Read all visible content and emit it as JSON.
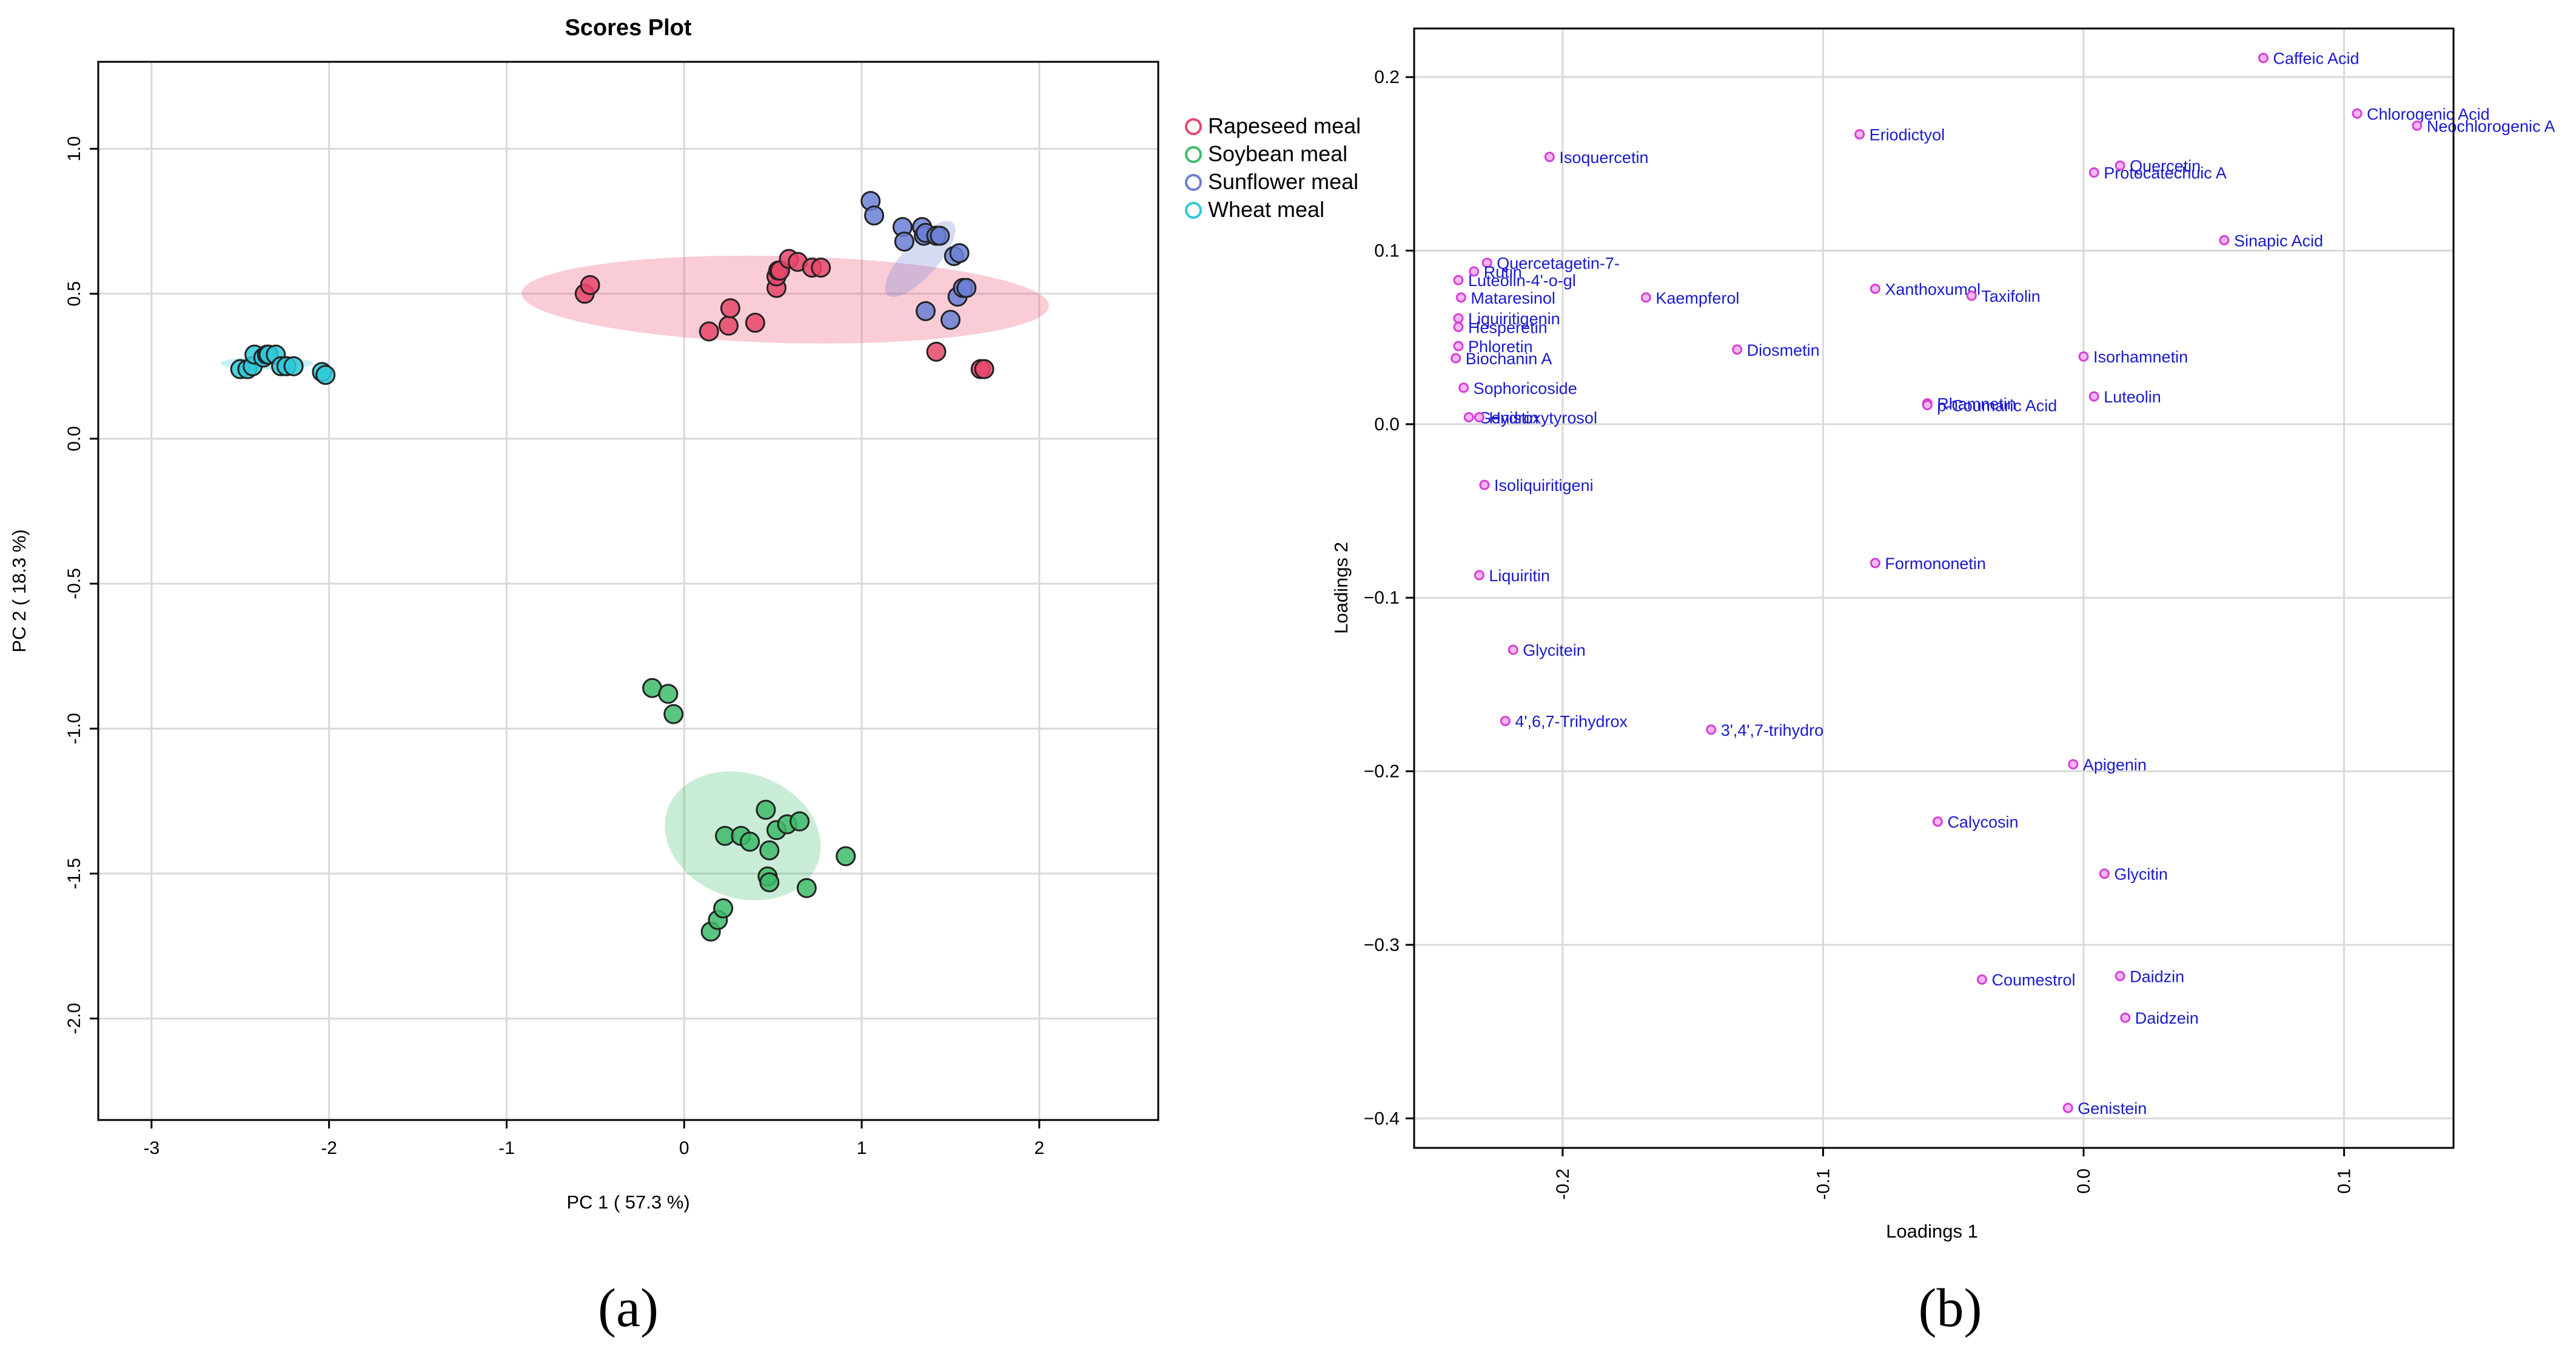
{
  "panels": {
    "a_label": "(a)",
    "b_label": "(b)"
  },
  "colors": {
    "rapeseed": "#e8476a",
    "soybean": "#3dbb6a",
    "sunflower": "#6b7fd6",
    "wheat": "#2fc9d8",
    "loading_point": "#d63fd6",
    "loading_text": "#1a1acc"
  },
  "chart_data": [
    {
      "type": "scatter",
      "title": "Scores Plot",
      "xlabel": "PC 1 ( 57.3 %)",
      "ylabel": "PC 2 ( 18.3 %)",
      "xlim": [
        -3.3,
        2.67
      ],
      "ylim": [
        -2.35,
        1.3
      ],
      "xticks": [
        -3,
        -2,
        -1,
        0,
        1,
        2
      ],
      "yticks": [
        -2.0,
        -1.5,
        -1.0,
        -0.5,
        0.0,
        0.5,
        1.0
      ],
      "ytick_labels": [
        "-2.0",
        "-1.5",
        "-1.0",
        "-0.5",
        "0.0",
        "0.5",
        "1.0"
      ],
      "grid": true,
      "legend_position": "top-right outside",
      "series": [
        {
          "name": "Rapeseed meal",
          "color_key": "rapeseed",
          "x": [
            -0.56,
            -0.53,
            0.14,
            0.25,
            0.26,
            0.4,
            0.52,
            0.52,
            0.53,
            0.54,
            0.59,
            0.64,
            0.72,
            0.77,
            1.42,
            1.67,
            1.69
          ],
          "y": [
            0.5,
            0.53,
            0.37,
            0.39,
            0.45,
            0.4,
            0.52,
            0.56,
            0.58,
            0.58,
            0.62,
            0.61,
            0.59,
            0.59,
            0.3,
            0.24,
            0.24
          ],
          "ellipse": {
            "cx": 0.57,
            "cy": 0.48,
            "rx": 2.97,
            "ry": 0.3,
            "angle_deg": -1.4
          }
        },
        {
          "name": "Soybean meal",
          "color_key": "soybean",
          "x": [
            -0.18,
            -0.09,
            -0.06,
            0.15,
            0.19,
            0.22,
            0.23,
            0.32,
            0.37,
            0.46,
            0.47,
            0.48,
            0.48,
            0.52,
            0.58,
            0.65,
            0.69,
            0.91
          ],
          "y": [
            -0.86,
            -0.88,
            -0.95,
            -1.7,
            -1.66,
            -1.62,
            -1.37,
            -1.37,
            -1.39,
            -1.28,
            -1.51,
            -1.42,
            -1.53,
            -1.35,
            -1.33,
            -1.32,
            -1.55,
            -1.44
          ],
          "ellipse": {
            "cx": 0.33,
            "cy": -1.37,
            "rx": 0.7,
            "ry": 0.55,
            "angle_deg": 70
          }
        },
        {
          "name": "Sunflower meal",
          "color_key": "sunflower",
          "x": [
            1.05,
            1.07,
            1.23,
            1.24,
            1.34,
            1.35,
            1.36,
            1.36,
            1.42,
            1.44,
            1.5,
            1.52,
            1.54,
            1.55,
            1.57,
            1.59
          ],
          "y": [
            0.82,
            0.77,
            0.73,
            0.68,
            0.73,
            0.7,
            0.71,
            0.44,
            0.7,
            0.7,
            0.41,
            0.63,
            0.49,
            0.64,
            0.52,
            0.52
          ],
          "ellipse": {
            "cx": 1.33,
            "cy": 0.62,
            "rx": 0.55,
            "ry": 0.12,
            "angle_deg": 48
          }
        },
        {
          "name": "Wheat meal",
          "color_key": "wheat",
          "x": [
            -2.5,
            -2.46,
            -2.43,
            -2.42,
            -2.37,
            -2.35,
            -2.34,
            -2.3,
            -2.27,
            -2.24,
            -2.2,
            -2.04,
            -2.02
          ],
          "y": [
            0.24,
            0.24,
            0.25,
            0.29,
            0.28,
            0.29,
            0.29,
            0.29,
            0.25,
            0.25,
            0.25,
            0.23,
            0.22
          ],
          "ellipse": {
            "cx": -2.35,
            "cy": 0.26,
            "rx": 0.52,
            "ry": 0.045,
            "angle_deg": 0
          }
        }
      ]
    },
    {
      "type": "scatter",
      "title": "",
      "xlabel": "Loadings 1",
      "ylabel": "Loadings 2",
      "xlim": [
        -0.257,
        0.142
      ],
      "ylim": [
        -0.417,
        0.228
      ],
      "xticks": [
        -0.2,
        -0.1,
        0.0,
        0.1
      ],
      "xtick_labels": [
        "-0.2",
        "-0.1",
        "0.0",
        "0.1"
      ],
      "yticks": [
        -0.4,
        -0.3,
        -0.2,
        -0.1,
        0.0,
        0.1,
        0.2
      ],
      "ytick_labels": [
        "−0.4",
        "−0.3",
        "−0.2",
        "−0.1",
        "0.0",
        "0.1",
        "0.2"
      ],
      "grid": true,
      "points": [
        {
          "label": "Caffeic Acid",
          "x": 0.069,
          "y": 0.211
        },
        {
          "label": "Chlorogenic Acid",
          "x": 0.105,
          "y": 0.179
        },
        {
          "label": "Neochlorogenic A",
          "x": 0.128,
          "y": 0.172
        },
        {
          "label": "Eriodictyol",
          "x": -0.086,
          "y": 0.167
        },
        {
          "label": "Isoquercetin",
          "x": -0.205,
          "y": 0.154
        },
        {
          "label": "Quercetin",
          "x": 0.014,
          "y": 0.149
        },
        {
          "label": "Protocatechuic A",
          "x": 0.004,
          "y": 0.145
        },
        {
          "label": "Sinapic Acid",
          "x": 0.054,
          "y": 0.106
        },
        {
          "label": "Quercetagetin-7-",
          "x": -0.229,
          "y": 0.093
        },
        {
          "label": "Rutin",
          "x": -0.234,
          "y": 0.088
        },
        {
          "label": "Luteolin-4'-o-gl",
          "x": -0.24,
          "y": 0.083
        },
        {
          "label": "Xanthoxumol",
          "x": -0.08,
          "y": 0.078
        },
        {
          "label": "Taxifolin",
          "x": -0.043,
          "y": 0.074
        },
        {
          "label": "Mataresinol",
          "x": -0.239,
          "y": 0.073
        },
        {
          "label": "Kaempferol",
          "x": -0.168,
          "y": 0.073
        },
        {
          "label": "Liquiritigenin",
          "x": -0.24,
          "y": 0.061
        },
        {
          "label": "Hesperetin",
          "x": -0.24,
          "y": 0.056
        },
        {
          "label": "Phloretin",
          "x": -0.24,
          "y": 0.045
        },
        {
          "label": "Diosmetin",
          "x": -0.133,
          "y": 0.043
        },
        {
          "label": "Isorhamnetin",
          "x": 0.0,
          "y": 0.039
        },
        {
          "label": "Biochanin A",
          "x": -0.241,
          "y": 0.038
        },
        {
          "label": "Sophoricoside",
          "x": -0.238,
          "y": 0.021
        },
        {
          "label": "Luteolin",
          "x": 0.004,
          "y": 0.016
        },
        {
          "label": "Rhamnetin",
          "x": -0.06,
          "y": 0.012
        },
        {
          "label": "p-Coumaric Acid",
          "x": -0.06,
          "y": 0.011
        },
        {
          "label": "Genistin",
          "x": -0.236,
          "y": 0.004
        },
        {
          "label": "Hydroxytyrosol",
          "x": -0.232,
          "y": 0.004
        },
        {
          "label": "Isoliquiritigeni",
          "x": -0.23,
          "y": -0.035
        },
        {
          "label": "Formononetin",
          "x": -0.08,
          "y": -0.08
        },
        {
          "label": "Liquiritin",
          "x": -0.232,
          "y": -0.087
        },
        {
          "label": "Glycitein",
          "x": -0.219,
          "y": -0.13
        },
        {
          "label": "4',6,7-Trihydrox",
          "x": -0.222,
          "y": -0.171
        },
        {
          "label": "3',4',7-trihydro",
          "x": -0.143,
          "y": -0.176
        },
        {
          "label": "Apigenin",
          "x": -0.004,
          "y": -0.196
        },
        {
          "label": "Calycosin",
          "x": -0.056,
          "y": -0.229
        },
        {
          "label": "Glycitin",
          "x": 0.008,
          "y": -0.259
        },
        {
          "label": "Daidzin",
          "x": 0.014,
          "y": -0.318
        },
        {
          "label": "Coumestrol",
          "x": -0.039,
          "y": -0.32
        },
        {
          "label": "Daidzein",
          "x": 0.016,
          "y": -0.342
        },
        {
          "label": "Genistein",
          "x": -0.006,
          "y": -0.394
        }
      ]
    }
  ]
}
